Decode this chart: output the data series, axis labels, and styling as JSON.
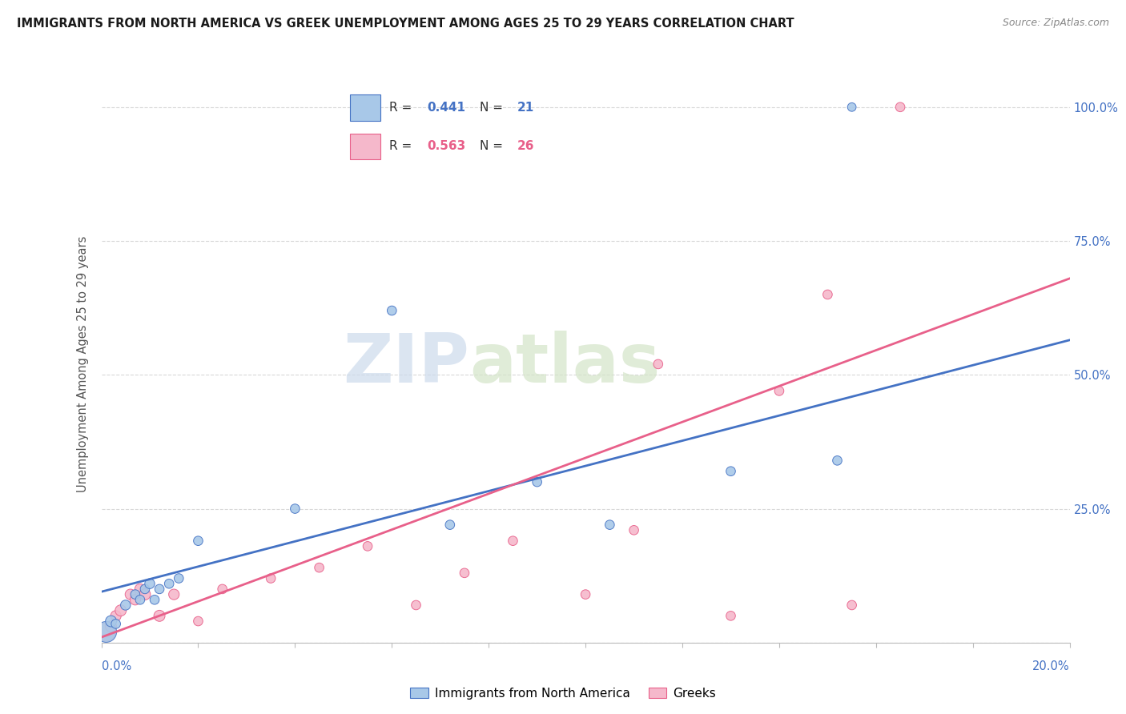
{
  "title": "IMMIGRANTS FROM NORTH AMERICA VS GREEK UNEMPLOYMENT AMONG AGES 25 TO 29 YEARS CORRELATION CHART",
  "source": "Source: ZipAtlas.com",
  "ylabel": "Unemployment Among Ages 25 to 29 years",
  "legend_blue_R": "R = 0.441",
  "legend_blue_N": "N = 21",
  "legend_pink_R": "R = 0.563",
  "legend_pink_N": "N = 26",
  "legend_label_blue": "Immigrants from North America",
  "legend_label_pink": "Greeks",
  "watermark_zip": "ZIP",
  "watermark_atlas": "atlas",
  "blue_color": "#a8c8e8",
  "blue_line_color": "#4472c4",
  "pink_color": "#f5b8cb",
  "pink_line_color": "#e8608a",
  "blue_scatter_x": [
    0.001,
    0.002,
    0.003,
    0.005,
    0.007,
    0.008,
    0.009,
    0.01,
    0.011,
    0.012,
    0.014,
    0.016,
    0.02,
    0.04,
    0.06,
    0.072,
    0.09,
    0.105,
    0.13,
    0.152,
    0.155
  ],
  "blue_scatter_y": [
    0.02,
    0.04,
    0.035,
    0.07,
    0.09,
    0.08,
    0.1,
    0.11,
    0.08,
    0.1,
    0.11,
    0.12,
    0.19,
    0.25,
    0.62,
    0.22,
    0.3,
    0.22,
    0.32,
    0.34,
    1.0
  ],
  "blue_scatter_s": [
    350,
    100,
    70,
    80,
    70,
    70,
    70,
    80,
    70,
    70,
    70,
    70,
    70,
    70,
    70,
    70,
    70,
    70,
    70,
    70,
    60
  ],
  "pink_scatter_x": [
    0.001,
    0.002,
    0.003,
    0.004,
    0.006,
    0.007,
    0.008,
    0.009,
    0.012,
    0.015,
    0.02,
    0.025,
    0.035,
    0.045,
    0.055,
    0.065,
    0.075,
    0.085,
    0.1,
    0.11,
    0.115,
    0.13,
    0.14,
    0.15,
    0.155,
    0.165
  ],
  "pink_scatter_y": [
    0.02,
    0.03,
    0.05,
    0.06,
    0.09,
    0.08,
    0.1,
    0.09,
    0.05,
    0.09,
    0.04,
    0.1,
    0.12,
    0.14,
    0.18,
    0.07,
    0.13,
    0.19,
    0.09,
    0.21,
    0.52,
    0.05,
    0.47,
    0.65,
    0.07,
    1.0
  ],
  "pink_scatter_s": [
    280,
    100,
    90,
    100,
    90,
    90,
    90,
    100,
    100,
    90,
    70,
    70,
    70,
    70,
    70,
    70,
    70,
    70,
    70,
    70,
    70,
    70,
    70,
    70,
    70,
    70
  ],
  "blue_line_x0": 0.0,
  "blue_line_y0": 0.095,
  "blue_line_x1": 0.2,
  "blue_line_y1": 0.565,
  "pink_line_x0": 0.0,
  "pink_line_y0": 0.01,
  "pink_line_x1": 0.2,
  "pink_line_y1": 0.68,
  "xlim": [
    0.0,
    0.2
  ],
  "ylim": [
    0.0,
    1.04
  ],
  "yticks": [
    0.0,
    0.25,
    0.5,
    0.75,
    1.0
  ],
  "ytick_labels": [
    "",
    "25.0%",
    "50.0%",
    "75.0%",
    "100.0%"
  ],
  "xtick_positions": [
    0.0,
    0.02,
    0.04,
    0.06,
    0.08,
    0.1,
    0.12,
    0.14,
    0.16,
    0.18,
    0.2
  ],
  "grid_color": "#d8d8d8",
  "bg_color": "#ffffff",
  "right_axis_color": "#4472c4",
  "title_color": "#1a1a1a",
  "source_color": "#888888",
  "ylabel_color": "#555555"
}
